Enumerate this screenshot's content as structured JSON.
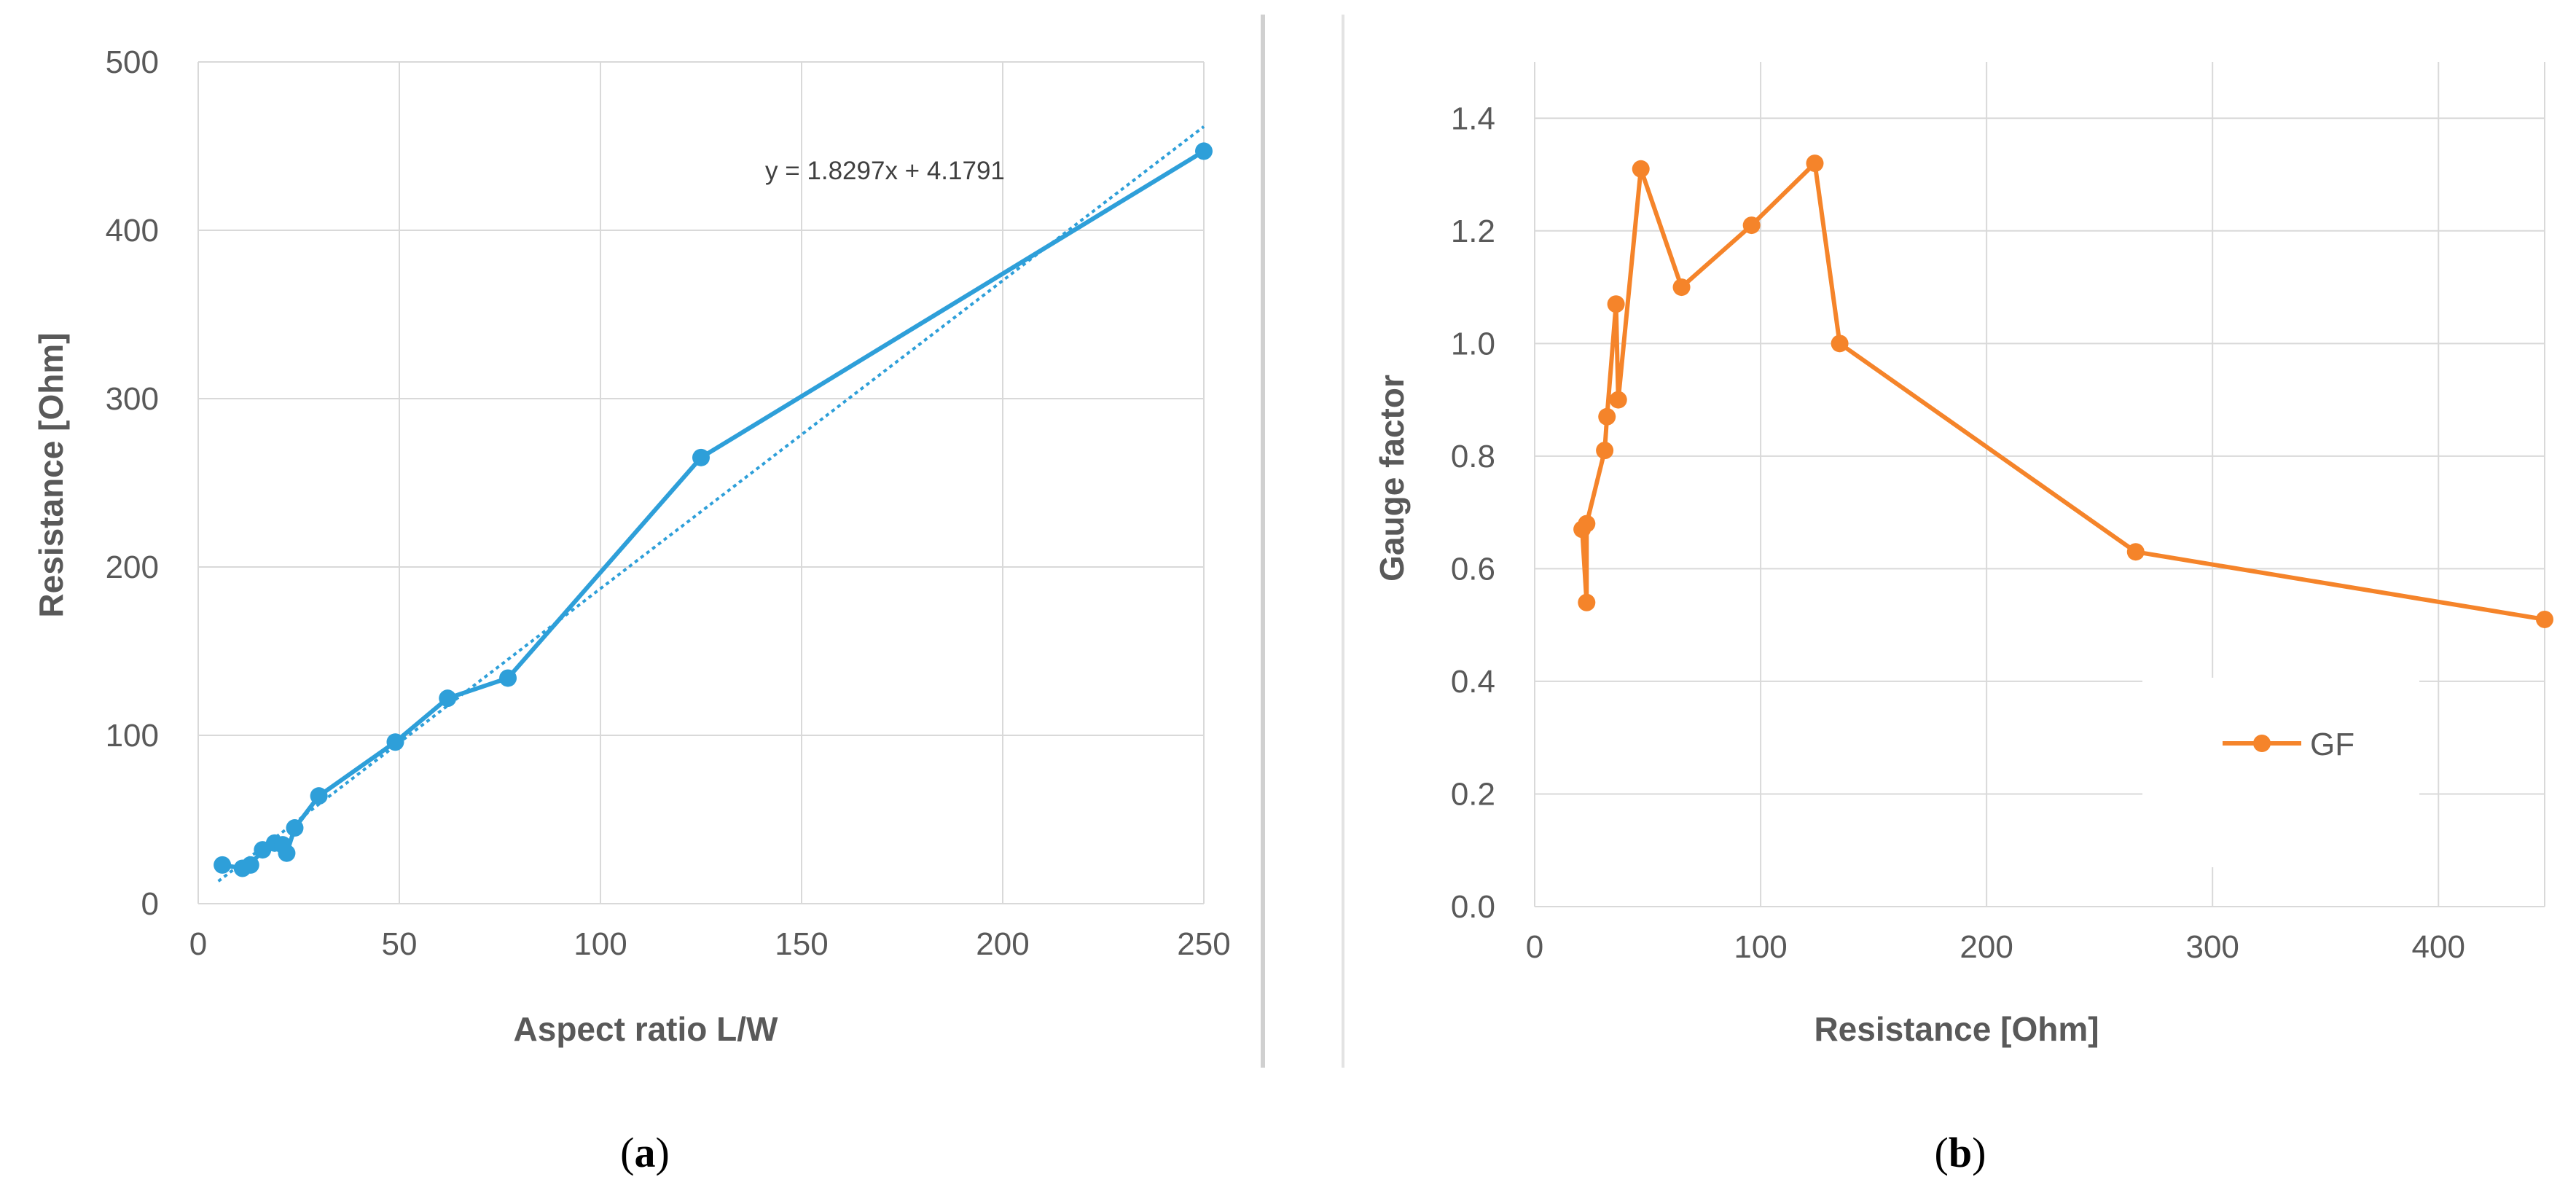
{
  "chart_data": [
    {
      "id": "a",
      "type": "line",
      "panel_label": "a",
      "title": "",
      "xlabel": "Aspect ratio L/W",
      "ylabel": "Resistance [Ohm]",
      "xlim": [
        0,
        250
      ],
      "ylim": [
        0,
        500
      ],
      "xticks": [
        0,
        50,
        100,
        150,
        200,
        250
      ],
      "yticks": [
        0,
        100,
        200,
        300,
        400,
        500
      ],
      "grid": true,
      "series": [
        {
          "name": "Resistance",
          "color": "#2e9fd9",
          "x": [
            6,
            11,
            13,
            16,
            19,
            21,
            22,
            24,
            30,
            49,
            62,
            77,
            125,
            250
          ],
          "y": [
            23,
            21,
            23,
            32,
            36,
            35,
            30,
            45,
            64,
            96,
            122,
            134,
            265,
            447
          ]
        }
      ],
      "trendline": {
        "type": "linear",
        "slope": 1.8297,
        "intercept": 4.1791,
        "x_range": [
          5,
          250
        ],
        "equation": "y = 1.8297x + 4.1791",
        "color": "#2e9fd9"
      }
    },
    {
      "id": "b",
      "type": "line",
      "panel_label": "b",
      "title": "",
      "xlabel": "Resistance [Ohm]",
      "ylabel": "Gauge factor",
      "xlim": [
        0,
        447
      ],
      "ylim": [
        0,
        1.5
      ],
      "xticks": [
        0,
        100,
        200,
        300,
        400
      ],
      "yticks": [
        0.0,
        0.2,
        0.4,
        0.6,
        0.8,
        1.0,
        1.2,
        1.4
      ],
      "ytick_labels": [
        "0.0",
        "0.2",
        "0.4",
        "0.6",
        "0.8",
        "1.0",
        "1.2",
        "1.4"
      ],
      "grid": true,
      "legend": {
        "position": "center-right",
        "entries": [
          "GF"
        ]
      },
      "series": [
        {
          "name": "GF",
          "color": "#f5842a",
          "x": [
            21,
            23,
            23,
            31,
            32,
            36,
            37,
            47,
            65,
            96,
            124,
            135,
            266,
            447
          ],
          "y": [
            0.67,
            0.54,
            0.68,
            0.81,
            0.87,
            1.07,
            0.9,
            1.31,
            1.1,
            1.21,
            1.32,
            1.0,
            0.63,
            0.51
          ]
        }
      ]
    }
  ]
}
